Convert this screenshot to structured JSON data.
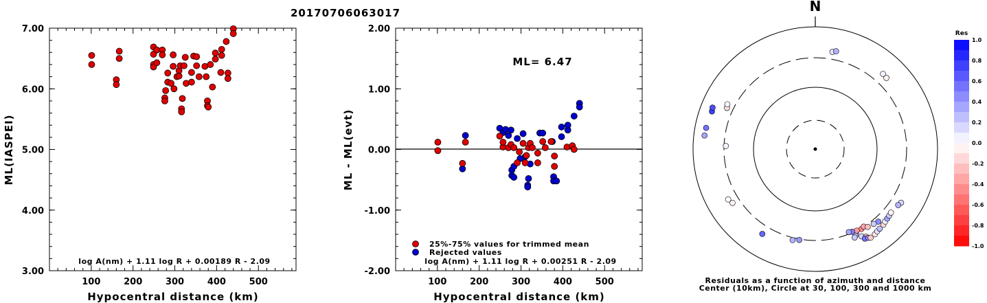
{
  "title": "20170706063017",
  "colors": {
    "used": "#e00000",
    "rejected": "#0000d0"
  },
  "chart_data": [
    {
      "type": "scatter",
      "xlabel": "Hypocentral distance (km)",
      "ylabel": "ML(IASPEI)",
      "xlim": [
        0,
        590
      ],
      "ylim": [
        3.0,
        7.0
      ],
      "xticks": [
        {
          "v": 100,
          "label": "100"
        },
        {
          "v": 200,
          "label": "200"
        },
        {
          "v": 300,
          "label": "300"
        },
        {
          "v": 400,
          "label": "400"
        },
        {
          "v": 500,
          "label": "500"
        }
      ],
      "yticks": [
        {
          "v": 3,
          "label": "3.00"
        },
        {
          "v": 4,
          "label": "4.00"
        },
        {
          "v": 5,
          "label": "5.00"
        },
        {
          "v": 6,
          "label": "6.00"
        },
        {
          "v": 7,
          "label": "7.00"
        }
      ],
      "formula": "log A(nm) + 1.11 log R + 0.00189 R - 2.09",
      "points": [
        [
          101,
          6.55
        ],
        [
          101,
          6.4
        ],
        [
          160,
          6.15
        ],
        [
          160,
          6.07
        ],
        [
          167,
          6.62
        ],
        [
          167,
          6.5
        ],
        [
          249,
          6.69
        ],
        [
          249,
          6.57
        ],
        [
          249,
          6.4
        ],
        [
          249,
          6.36
        ],
        [
          257,
          6.64
        ],
        [
          257,
          6.43
        ],
        [
          270,
          6.64
        ],
        [
          270,
          6.56
        ],
        [
          276,
          5.85
        ],
        [
          276,
          5.8
        ],
        [
          278,
          5.97
        ],
        [
          283,
          6.26
        ],
        [
          283,
          6.11
        ],
        [
          291,
          6.09
        ],
        [
          296,
          6.37
        ],
        [
          296,
          6.56
        ],
        [
          298,
          6.0
        ],
        [
          305,
          6.2
        ],
        [
          310,
          6.3
        ],
        [
          310,
          6.21
        ],
        [
          313,
          6.38
        ],
        [
          316,
          5.67
        ],
        [
          316,
          5.62
        ],
        [
          318,
          5.84
        ],
        [
          322,
          6.38
        ],
        [
          325,
          6.52
        ],
        [
          327,
          6.09
        ],
        [
          340,
          6.27
        ],
        [
          340,
          6.11
        ],
        [
          345,
          6.54
        ],
        [
          352,
          6.53
        ],
        [
          352,
          6.38
        ],
        [
          358,
          6.2
        ],
        [
          372,
          6.37
        ],
        [
          375,
          6.2
        ],
        [
          378,
          5.8
        ],
        [
          378,
          5.72
        ],
        [
          380,
          5.7
        ],
        [
          385,
          6.4
        ],
        [
          390,
          6.03
        ],
        [
          397,
          6.49
        ],
        [
          397,
          6.59
        ],
        [
          410,
          6.27
        ],
        [
          412,
          6.65
        ],
        [
          412,
          6.55
        ],
        [
          423,
          6.78
        ],
        [
          427,
          6.26
        ],
        [
          427,
          6.17
        ],
        [
          440,
          6.99
        ],
        [
          440,
          6.91
        ]
      ]
    },
    {
      "type": "scatter",
      "xlabel": "Hypocentral distance (km)",
      "ylabel": "ML - ML(evt)",
      "xlim": [
        0,
        590
      ],
      "ylim": [
        -2.0,
        2.0
      ],
      "xticks": [
        {
          "v": 100,
          "label": "100"
        },
        {
          "v": 200,
          "label": "200"
        },
        {
          "v": 300,
          "label": "300"
        },
        {
          "v": 400,
          "label": "400"
        },
        {
          "v": 500,
          "label": "500"
        }
      ],
      "yticks": [
        {
          "v": -2,
          "label": "-2.00"
        },
        {
          "v": -1,
          "label": "-1.00"
        },
        {
          "v": 0,
          "label": "0.00"
        },
        {
          "v": 1,
          "label": "1.00"
        },
        {
          "v": 2,
          "label": "2.00"
        }
      ],
      "ml_label": "ML=  6.47",
      "legend": [
        {
          "label": "25%-75% values for trimmed mean",
          "color": "#e00000"
        },
        {
          "label": "Rejected values",
          "color": "#0000d0"
        }
      ],
      "formula": "log A(nm) + 1.11 log R + 0.00251 R - 2.09",
      "used": [
        [
          101,
          0.12
        ],
        [
          101,
          -0.02
        ],
        [
          167,
          0.12
        ],
        [
          249,
          0.22
        ],
        [
          257,
          0.04
        ],
        [
          257,
          0.12
        ],
        [
          270,
          0.03
        ],
        [
          276,
          0.08
        ],
        [
          283,
          0.03
        ],
        [
          291,
          -0.22
        ],
        [
          296,
          -0.04
        ],
        [
          305,
          0.1
        ],
        [
          310,
          -0.22
        ],
        [
          313,
          -0.1
        ],
        [
          318,
          0.03
        ],
        [
          322,
          0.1
        ],
        [
          327,
          0.03
        ],
        [
          340,
          -0.22
        ],
        [
          340,
          -0.06
        ],
        [
          352,
          0.13
        ],
        [
          358,
          0.03
        ],
        [
          372,
          0.13
        ],
        [
          380,
          -0.28
        ],
        [
          380,
          -0.11
        ],
        [
          410,
          0.04
        ],
        [
          423,
          0.06
        ],
        [
          427,
          0.0
        ],
        [
          160,
          -0.23
        ]
      ],
      "rejected": [
        [
          160,
          -0.32
        ],
        [
          167,
          0.23
        ],
        [
          249,
          0.35
        ],
        [
          257,
          0.28
        ],
        [
          263,
          0.33
        ],
        [
          270,
          0.23
        ],
        [
          276,
          0.32
        ],
        [
          278,
          -0.34
        ],
        [
          278,
          -0.43
        ],
        [
          283,
          -0.46
        ],
        [
          283,
          -0.28
        ],
        [
          291,
          0.18
        ],
        [
          298,
          -0.15
        ],
        [
          305,
          0.26
        ],
        [
          310,
          -0.12
        ],
        [
          316,
          -0.59
        ],
        [
          316,
          -0.62
        ],
        [
          318,
          -0.48
        ],
        [
          322,
          -0.24
        ],
        [
          345,
          0.27
        ],
        [
          352,
          0.27
        ],
        [
          375,
          0.13
        ],
        [
          378,
          -0.45
        ],
        [
          378,
          -0.52
        ],
        [
          385,
          -0.52
        ],
        [
          397,
          0.21
        ],
        [
          397,
          0.37
        ],
        [
          412,
          0.32
        ],
        [
          412,
          0.4
        ],
        [
          427,
          0.55
        ],
        [
          440,
          0.76
        ],
        [
          440,
          0.7
        ]
      ]
    },
    {
      "type": "polar-scatter",
      "north_label": "N",
      "caption_1": "Residuals as a function of azimuth and distance",
      "caption_2": "Center (10km), Circle at 30, 100, 300 and 1000 km",
      "rings_km": [
        30,
        100,
        300,
        1000
      ],
      "colorbar": {
        "title": "Res",
        "ticks": [
          {
            "v": 1.0,
            "label": "1.0"
          },
          {
            "v": 0.8,
            "label": "0.8"
          },
          {
            "v": 0.6,
            "label": "0.6"
          },
          {
            "v": 0.4,
            "label": "0.4"
          },
          {
            "v": 0.2,
            "label": "0.2"
          },
          {
            "v": 0.0,
            "label": "0.0"
          },
          {
            "v": -0.2,
            "label": "-0.2"
          },
          {
            "v": -0.4,
            "label": "-0.4"
          },
          {
            "v": -0.6,
            "label": "-0.6"
          },
          {
            "v": -0.8,
            "label": "-0.8"
          },
          {
            "v": -1.0,
            "label": "-1.0"
          }
        ]
      },
      "stations": [
        {
          "az": 10,
          "dist": 400,
          "res": 0.1
        },
        {
          "az": 12,
          "dist": 420,
          "res": 0.3
        },
        {
          "az": 42,
          "dist": 440,
          "res": 0.05
        },
        {
          "az": 45,
          "dist": 430,
          "res": -0.05
        },
        {
          "az": 295,
          "dist": 380,
          "res": -0.12
        },
        {
          "az": 297,
          "dist": 400,
          "res": 0.05
        },
        {
          "az": 290,
          "dist": 620,
          "res": 0.75
        },
        {
          "az": 292,
          "dist": 640,
          "res": 0.7
        },
        {
          "az": 281,
          "dist": 650,
          "res": 0.55
        },
        {
          "az": 277,
          "dist": 660,
          "res": 0.35
        },
        {
          "az": 272,
          "dist": 280,
          "res": 0.05
        },
        {
          "az": 240,
          "dist": 430,
          "res": 0.0
        },
        {
          "az": 237,
          "dist": 400,
          "res": -0.05
        },
        {
          "az": 122,
          "dist": 440,
          "res": 0.15
        },
        {
          "az": 124,
          "dist": 420,
          "res": 0.3
        },
        {
          "az": 190,
          "dist": 310,
          "res": 0.4
        },
        {
          "az": 194,
          "dist": 330,
          "res": 0.3
        },
        {
          "az": 212,
          "dist": 420,
          "res": 0.6
        },
        {
          "az": 150,
          "dist": 310,
          "res": -0.45
        },
        {
          "az": 148,
          "dist": 300,
          "res": -0.35
        },
        {
          "az": 154,
          "dist": 320,
          "res": 0.45
        },
        {
          "az": 155,
          "dist": 350,
          "res": 0.3
        },
        {
          "az": 156,
          "dist": 370,
          "res": 0.2
        },
        {
          "az": 152,
          "dist": 400,
          "res": 0.15
        },
        {
          "az": 150,
          "dist": 440,
          "res": -0.3
        },
        {
          "az": 151,
          "dist": 460,
          "res": 0.55
        },
        {
          "az": 149,
          "dist": 480,
          "res": 0.4
        },
        {
          "az": 148,
          "dist": 500,
          "res": -0.2
        },
        {
          "az": 145,
          "dist": 490,
          "res": -0.1
        },
        {
          "az": 143,
          "dist": 470,
          "res": 0.1
        },
        {
          "az": 141,
          "dist": 460,
          "res": 0.25
        },
        {
          "az": 138,
          "dist": 450,
          "res": -0.15
        },
        {
          "az": 136,
          "dist": 430,
          "res": 0.05
        },
        {
          "az": 134,
          "dist": 420,
          "res": 0.35
        },
        {
          "az": 132,
          "dist": 410,
          "res": 0.2
        },
        {
          "az": 130,
          "dist": 400,
          "res": -0.05
        },
        {
          "az": 139,
          "dist": 360,
          "res": 0.45
        },
        {
          "az": 142,
          "dist": 345,
          "res": 0.2
        },
        {
          "az": 146,
          "dist": 330,
          "res": -0.25
        },
        {
          "az": 153,
          "dist": 300,
          "res": -0.4
        },
        {
          "az": 156,
          "dist": 290,
          "res": 0.5
        },
        {
          "az": 158,
          "dist": 280,
          "res": 0.35
        }
      ]
    }
  ]
}
